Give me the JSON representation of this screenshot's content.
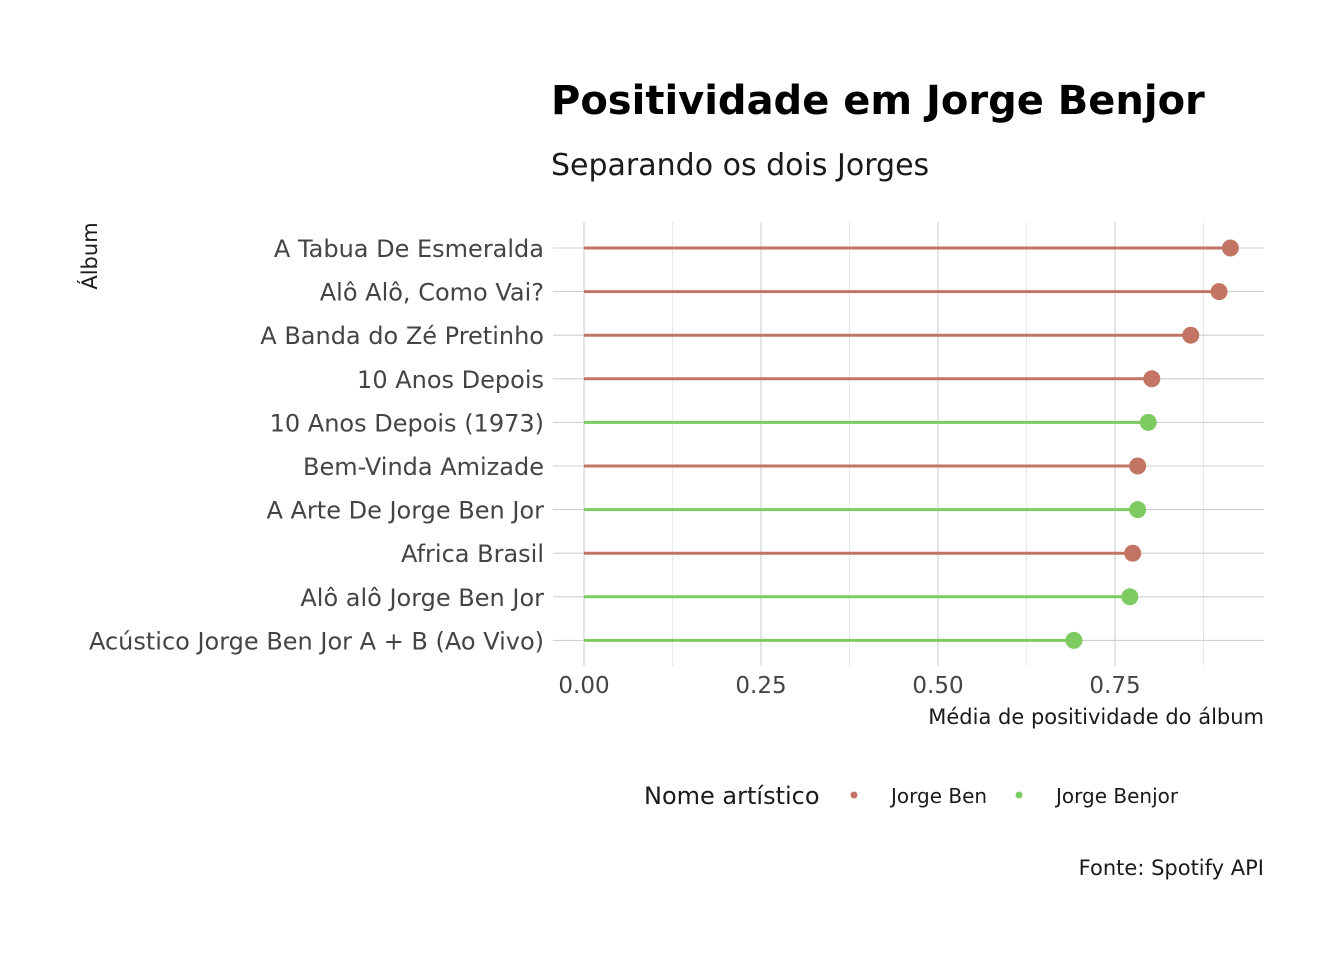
{
  "chart_data": {
    "type": "lollipop",
    "title": "Positividade em Jorge Benjor",
    "subtitle": "Separando os dois Jorges",
    "xlabel": "Média de positividade do álbum",
    "ylabel": "Álbum",
    "caption": "Fonte: Spotify API",
    "xlim": [
      0,
      0.96
    ],
    "xticks": [
      0,
      0.25,
      0.5,
      0.75
    ],
    "xtick_labels": [
      "0.00",
      "0.25",
      "0.50",
      "0.75"
    ],
    "grid": true,
    "legend": {
      "title": "Nome artístico",
      "placement": "bottom",
      "entries": [
        {
          "name": "Jorge Ben",
          "color": "#c27563"
        },
        {
          "name": "Jorge Benjor",
          "color": "#7dcb61"
        }
      ]
    },
    "categories": [
      "A Tabua De Esmeralda",
      "Alô Alô, Como Vai?",
      "A Banda do Zé Pretinho",
      "10 Anos Depois",
      "10 Anos Depois (1973)",
      "Bem-Vinda Amizade",
      "A Arte De Jorge Ben Jor",
      "Africa Brasil",
      "Alô alô Jorge Ben Jor",
      "Acústico Jorge Ben Jor A + B (Ao Vivo)"
    ],
    "values": [
      0.913,
      0.897,
      0.857,
      0.802,
      0.797,
      0.782,
      0.782,
      0.775,
      0.771,
      0.692
    ],
    "groups": [
      "Jorge Ben",
      "Jorge Ben",
      "Jorge Ben",
      "Jorge Ben",
      "Jorge Benjor",
      "Jorge Ben",
      "Jorge Benjor",
      "Jorge Ben",
      "Jorge Benjor",
      "Jorge Benjor"
    ]
  }
}
